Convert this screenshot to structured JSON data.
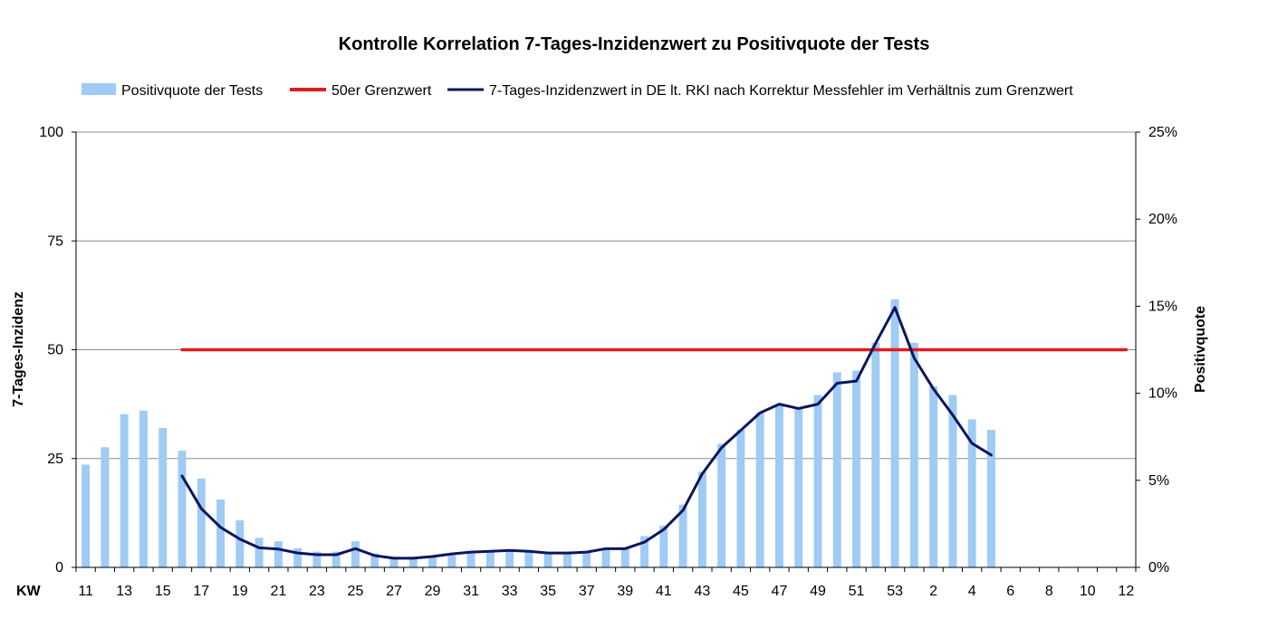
{
  "colors": {
    "bars": "#9fcbf4",
    "threshold": "#e41a1a",
    "incidence": "#0b1560",
    "grid": "#8c8c8c"
  },
  "chart_data": {
    "type": "bar",
    "title": "Kontrolle Korrelation 7-Tages-Inzidenzwert zu Positivquote der Tests",
    "xlabel": "KW",
    "ylabel": "7-Tages-Inzidenz",
    "y2label": "Positivquote",
    "ylim": [
      0,
      100
    ],
    "y2lim": [
      0,
      25
    ],
    "yticks": [
      "0",
      "25",
      "50",
      "75",
      "100"
    ],
    "y2ticks": [
      "0%",
      "5%",
      "10%",
      "15%",
      "20%",
      "25%"
    ],
    "grid": "horizontal",
    "legend_position": "top",
    "legend": [
      "Positivquote der Tests",
      "50er Grenzwert",
      "7-Tages-Inzidenzwert in DE lt. RKI nach Korrektur Messfehler im Verhältnis zum Grenzwert"
    ],
    "categories": [
      "11",
      "12",
      "13",
      "14",
      "15",
      "16",
      "17",
      "18",
      "19",
      "20",
      "21",
      "22",
      "23",
      "24",
      "25",
      "26",
      "27",
      "28",
      "29",
      "30",
      "31",
      "32",
      "33",
      "34",
      "35",
      "36",
      "37",
      "38",
      "39",
      "40",
      "41",
      "42",
      "43",
      "44",
      "45",
      "46",
      "47",
      "48",
      "49",
      "50",
      "51",
      "52",
      "53",
      "1",
      "2",
      "3",
      "4",
      "5",
      "6",
      "7",
      "8",
      "9",
      "10",
      "11",
      "12"
    ],
    "xtick_labels": [
      "11",
      "13",
      "15",
      "17",
      "19",
      "21",
      "23",
      "25",
      "27",
      "29",
      "31",
      "33",
      "35",
      "37",
      "39",
      "41",
      "43",
      "45",
      "47",
      "49",
      "51",
      "53",
      "2",
      "4",
      "6",
      "8",
      "10",
      "12"
    ],
    "series": [
      {
        "name": "Positivquote der Tests",
        "type": "bar",
        "axis": "right",
        "unit": "%",
        "values": [
          5.9,
          6.9,
          8.8,
          9.0,
          8.0,
          6.7,
          5.1,
          3.9,
          2.7,
          1.7,
          1.5,
          1.1,
          0.9,
          0.9,
          1.5,
          0.8,
          0.6,
          0.6,
          0.6,
          0.8,
          0.9,
          0.9,
          1.0,
          1.0,
          0.8,
          0.8,
          0.9,
          1.0,
          1.1,
          1.8,
          2.4,
          3.6,
          5.5,
          7.1,
          7.9,
          8.9,
          9.3,
          9.1,
          9.9,
          11.2,
          11.3,
          12.9,
          15.4,
          12.9,
          10.4,
          9.9,
          8.5,
          7.9,
          null,
          null,
          null,
          null,
          null,
          null,
          null
        ]
      },
      {
        "name": "50er Grenzwert",
        "type": "line",
        "axis": "left",
        "values": [
          null,
          null,
          null,
          null,
          null,
          50,
          50,
          50,
          50,
          50,
          50,
          50,
          50,
          50,
          50,
          50,
          50,
          50,
          50,
          50,
          50,
          50,
          50,
          50,
          50,
          50,
          50,
          50,
          50,
          50,
          50,
          50,
          50,
          50,
          50,
          50,
          50,
          50,
          50,
          50,
          50,
          50,
          50,
          50,
          50,
          50,
          50,
          50,
          50,
          50,
          50,
          50,
          50,
          50,
          50
        ]
      },
      {
        "name": "7-Tages-Inzidenzwert in DE lt. RKI nach Korrektur Messfehler im Verhältnis zum Grenzwert",
        "type": "line",
        "axis": "left",
        "values": [
          null,
          null,
          null,
          null,
          null,
          21.0,
          13.5,
          9.2,
          6.5,
          4.5,
          4.2,
          3.3,
          2.9,
          2.9,
          4.3,
          2.7,
          2.1,
          2.1,
          2.5,
          3.1,
          3.5,
          3.7,
          3.9,
          3.7,
          3.3,
          3.3,
          3.5,
          4.3,
          4.3,
          5.8,
          8.7,
          13.1,
          21.5,
          27.5,
          31.5,
          35.5,
          37.5,
          36.5,
          37.5,
          42.3,
          42.8,
          51.5,
          59.7,
          48.1,
          41.0,
          35.0,
          28.5,
          25.8,
          null,
          null,
          null,
          null,
          null,
          null,
          null
        ]
      }
    ]
  }
}
